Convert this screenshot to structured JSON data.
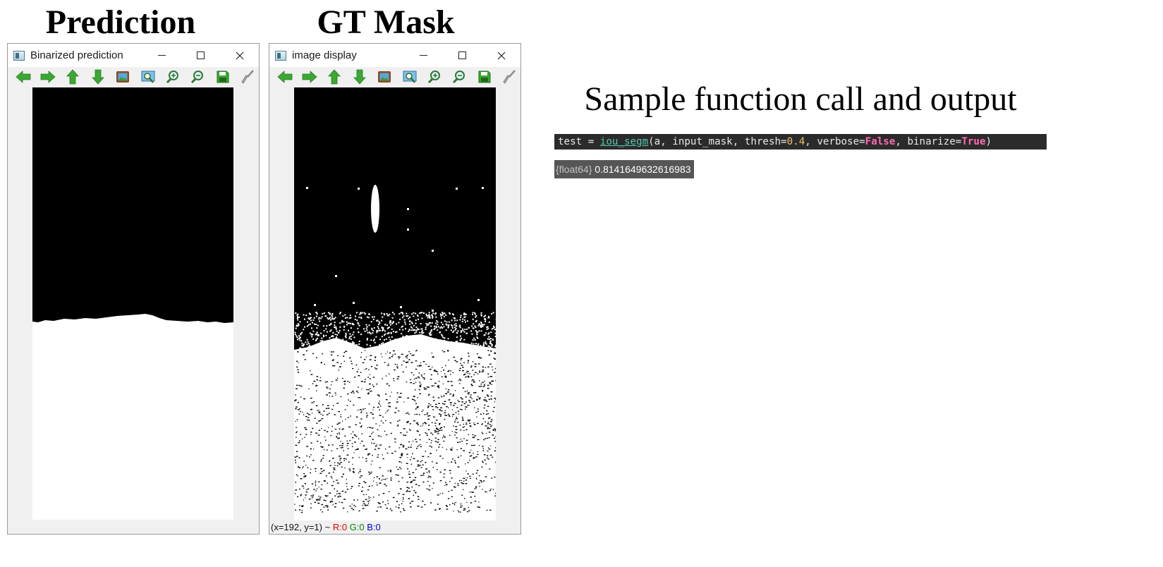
{
  "headings": {
    "prediction": "Prediction",
    "gt_mask": "GT Mask",
    "sample": "Sample function call and output"
  },
  "window_left": {
    "title": "Binarized prediction"
  },
  "window_right": {
    "title": "image display",
    "status": {
      "coords": "(x=192, y=1) ~ ",
      "r": "R:0",
      "g": "G:0",
      "b": "B:0"
    }
  },
  "toolbar_icons": [
    "arrow-left-icon",
    "arrow-right-icon",
    "arrow-up-icon",
    "arrow-down-icon",
    "show-image-icon",
    "zoom-fit-icon",
    "zoom-in-icon",
    "zoom-out-icon",
    "save-icon",
    "clear-brush-icon"
  ],
  "code": {
    "p1": "test = ",
    "fn": "iou_segm",
    "p2": "(a, input_mask, thresh=",
    "num": "0.4",
    "p3": ", verbose=",
    "kw1": "False",
    "p4": ", binarize=",
    "kw2": "True",
    "p5": ")"
  },
  "output": {
    "type": "{float64}",
    "value": " 0.8141649632616983"
  },
  "colors": {
    "toolbar_green": "#3aa832",
    "code_bg": "#2b2b2b",
    "output_bg": "#565656"
  }
}
